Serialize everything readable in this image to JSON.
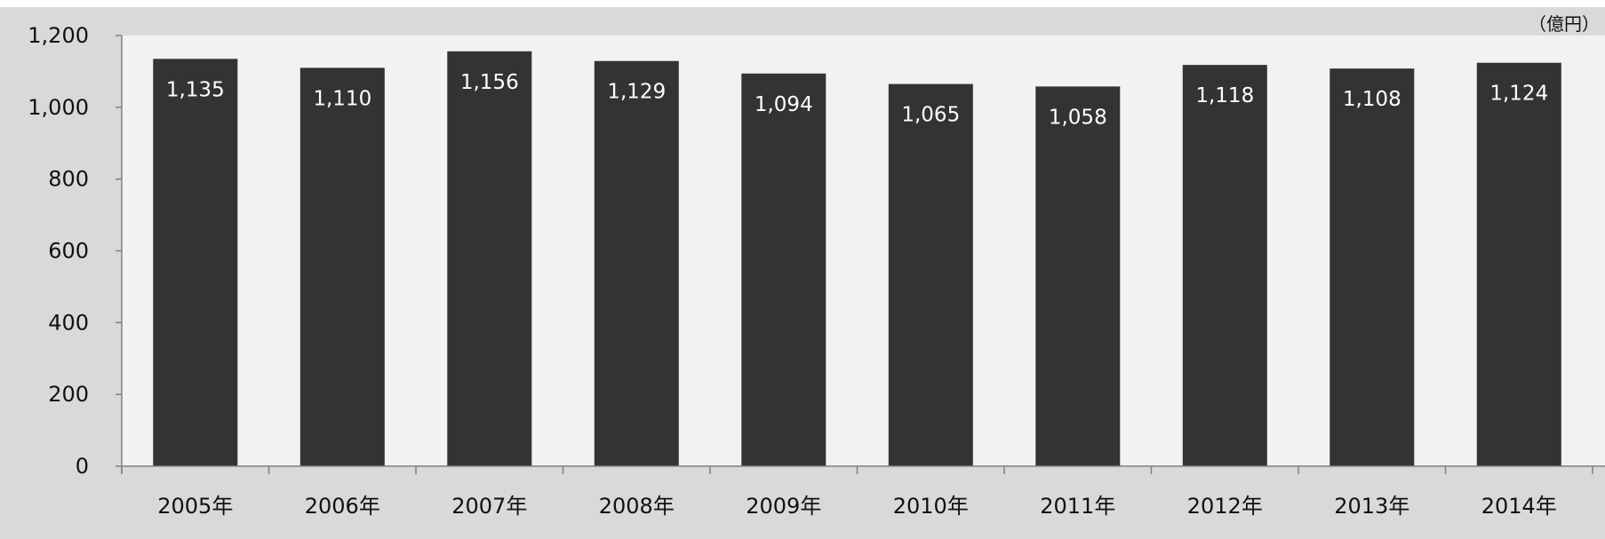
{
  "chart_data": {
    "type": "bar",
    "categories": [
      "2005年",
      "2006年",
      "2007年",
      "2008年",
      "2009年",
      "2010年",
      "2011年",
      "2012年",
      "2013年",
      "2014年"
    ],
    "values": [
      1135,
      1110,
      1156,
      1129,
      1094,
      1065,
      1058,
      1118,
      1108,
      1124
    ],
    "value_labels": [
      "1,135",
      "1,110",
      "1,156",
      "1,129",
      "1,094",
      "1,065",
      "1,058",
      "1,118",
      "1,108",
      "1,124"
    ],
    "unit": "（億円）",
    "ylim": [
      0,
      1200
    ],
    "yticks": [
      0,
      200,
      400,
      600,
      800,
      1000,
      1200
    ],
    "ytick_labels": [
      "0",
      "200",
      "400",
      "600",
      "800",
      "1,000",
      "1,200"
    ],
    "grid": false,
    "legend": "none",
    "colors": {
      "bar": "#333333",
      "plot_background": "#f2f2f2",
      "outer_background": "#d9d9d9",
      "axis": "#808080"
    }
  }
}
